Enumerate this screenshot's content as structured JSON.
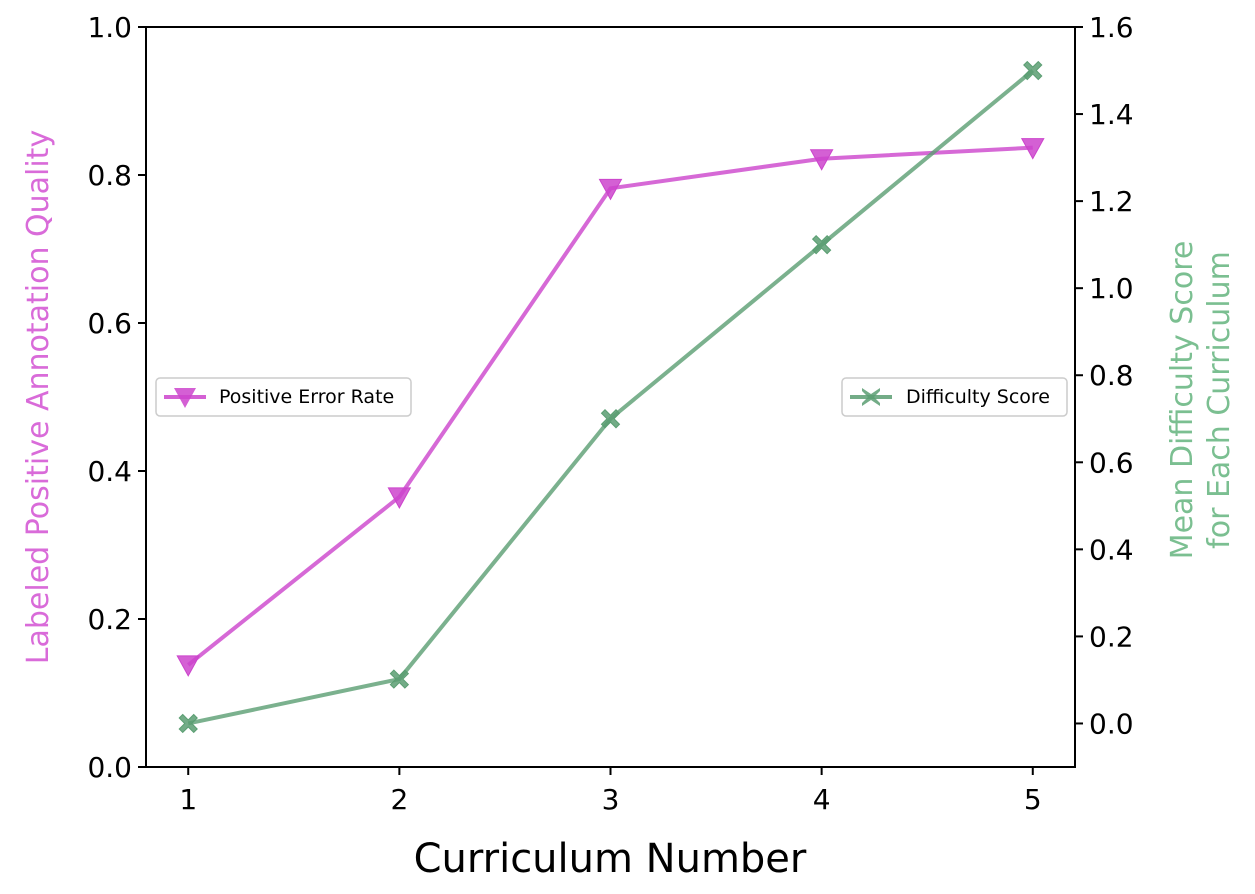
{
  "chart_data": {
    "type": "line",
    "xlabel": "Curriculum Number",
    "ylabel_left": "Labeled Positive Annotation Quality",
    "ylabel_right": [
      "Mean Difficulty Score",
      "for Each Curriculum"
    ],
    "x": [
      1,
      2,
      3,
      4,
      5
    ],
    "x_ticks": [
      "1",
      "2",
      "3",
      "4",
      "5"
    ],
    "xlim": [
      0.8,
      5.2
    ],
    "ylim_left": [
      0.0,
      1.0
    ],
    "yticks_left": [
      "0.0",
      "0.2",
      "0.4",
      "0.6",
      "0.8",
      "1.0"
    ],
    "ylim_right": [
      -0.1,
      1.6
    ],
    "yticks_right": [
      "0.0",
      "0.2",
      "0.4",
      "0.6",
      "0.8",
      "1.0",
      "1.2",
      "1.4",
      "1.6"
    ],
    "grid": false,
    "series": [
      {
        "name": "Positive Error Rate",
        "axis": "left",
        "marker": "triangle-down",
        "color": "#cc44cc",
        "values": [
          0.138,
          0.365,
          0.782,
          0.822,
          0.837
        ],
        "legend_position": "center-left"
      },
      {
        "name": "Difficulty Score",
        "axis": "right",
        "marker": "x-filled",
        "color": "#5a9e72",
        "values": [
          0.0,
          0.102,
          0.7,
          1.1,
          1.5
        ],
        "legend_position": "center-right"
      }
    ],
    "colors": {
      "left_axis_title": "#d96bd9",
      "right_axis_title": "#7bbf91"
    }
  }
}
